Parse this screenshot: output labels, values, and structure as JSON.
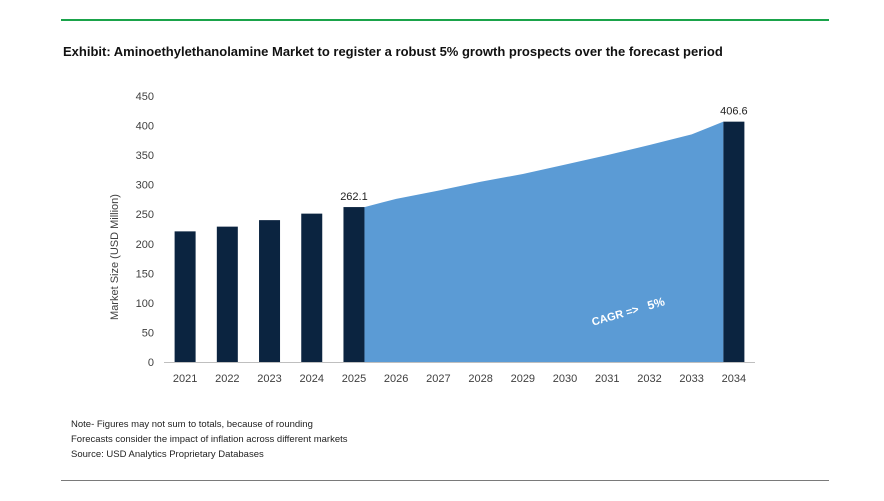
{
  "header": {
    "title": "Exhibit: Aminoethylethanolamine Market to register a robust 5% growth prospects over the forecast period"
  },
  "notes": [
    "Note- Figures may not sum to totals, because of rounding",
    "Forecasts consider the impact of inflation across different markets",
    "Source: USD Analytics Proprietary Databases"
  ],
  "annotation": {
    "cagr_label": "CAGR =>",
    "cagr_value": "5%"
  },
  "colors": {
    "bar": "#0b2440",
    "area": "#5b9bd5",
    "top_rule": "#1aa34a"
  },
  "chart_data": {
    "type": "bar",
    "categories": [
      "2021",
      "2022",
      "2023",
      "2024",
      "2025",
      "2026",
      "2027",
      "2028",
      "2029",
      "2030",
      "2031",
      "2032",
      "2033",
      "2034"
    ],
    "series": [
      {
        "type": "bar",
        "values": [
          221,
          229,
          240,
          251,
          262.1,
          null,
          null,
          null,
          null,
          null,
          null,
          null,
          null,
          406.6
        ]
      },
      {
        "type": "area",
        "values": [
          null,
          null,
          null,
          null,
          262.1,
          276,
          290,
          305,
          318,
          334,
          350,
          367,
          385,
          406.6
        ]
      }
    ],
    "data_labels": [
      {
        "category": "2025",
        "text": "262.1"
      },
      {
        "category": "2034",
        "text": "406.6"
      }
    ],
    "xlabel": "",
    "ylabel": "Market Size (USD Million)",
    "ylim": [
      0,
      450
    ],
    "yticks": [
      0,
      50,
      100,
      150,
      200,
      250,
      300,
      350,
      400,
      450
    ],
    "grid": false
  }
}
